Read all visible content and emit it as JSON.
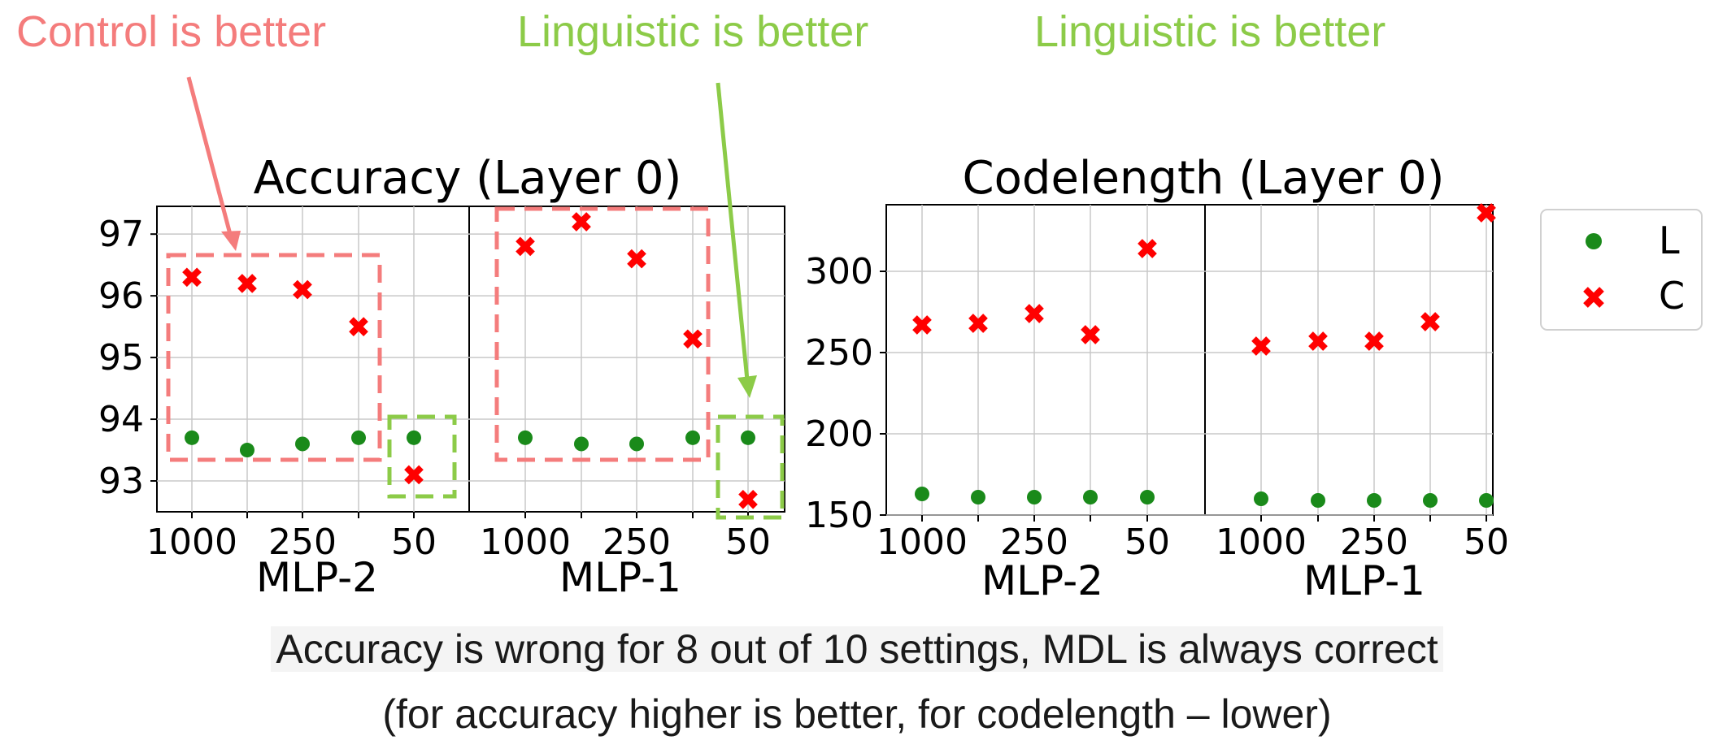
{
  "annotations": {
    "control": "Control is better",
    "linguistic_1": "Linguistic is better",
    "linguistic_2": "Linguistic is better"
  },
  "caption": {
    "line1": "Accuracy is wrong for 8 out of 10 settings, MDL is always correct",
    "line2": "(for accuracy higher is better, for codelength – lower)"
  },
  "legend": {
    "L": "L",
    "C": "C"
  },
  "colors": {
    "L": "#1a8a1a",
    "C": "#ff0000",
    "control_annotation": "#f47c7c",
    "linguistic_annotation": "#8ccb48",
    "grid": "#c8c8c8"
  },
  "chart_data": [
    {
      "type": "scatter",
      "title": "Accuracy (Layer 0)",
      "panels": [
        {
          "xlabel": "MLP-2",
          "x_ticks": [
            "1000",
            "250",
            "50"
          ],
          "series": [
            {
              "name": "L",
              "values": [
                93.7,
                93.5,
                93.6,
                93.7,
                93.7
              ]
            },
            {
              "name": "C",
              "values": [
                96.3,
                96.2,
                96.1,
                95.5,
                93.1
              ]
            }
          ]
        },
        {
          "xlabel": "MLP-1",
          "x_ticks": [
            "1000",
            "250",
            "50"
          ],
          "series": [
            {
              "name": "L",
              "values": [
                93.7,
                93.6,
                93.6,
                93.7,
                93.7
              ]
            },
            {
              "name": "C",
              "values": [
                96.8,
                97.2,
                96.6,
                95.3,
                92.7
              ]
            }
          ]
        }
      ],
      "y_ticks": [
        "97",
        "96",
        "95",
        "94",
        "93"
      ],
      "ylim": [
        92.5,
        97.45
      ],
      "grid": true
    },
    {
      "type": "scatter",
      "title": "Codelength (Layer 0)",
      "panels": [
        {
          "xlabel": "MLP-2",
          "x_ticks": [
            "1000",
            "250",
            "50"
          ],
          "series": [
            {
              "name": "L",
              "values": [
                163,
                161,
                161,
                161,
                161
              ]
            },
            {
              "name": "C",
              "values": [
                267,
                268,
                274,
                261,
                314
              ]
            }
          ]
        },
        {
          "xlabel": "MLP-1",
          "x_ticks": [
            "1000",
            "250",
            "50"
          ],
          "series": [
            {
              "name": "L",
              "values": [
                160,
                159,
                159,
                159,
                159
              ]
            },
            {
              "name": "C",
              "values": [
                254,
                257,
                257,
                269,
                336
              ]
            }
          ]
        }
      ],
      "y_ticks": [
        "300",
        "250",
        "200",
        "150"
      ],
      "ylim": [
        150,
        341
      ],
      "grid": true,
      "legend_position": "right"
    }
  ]
}
